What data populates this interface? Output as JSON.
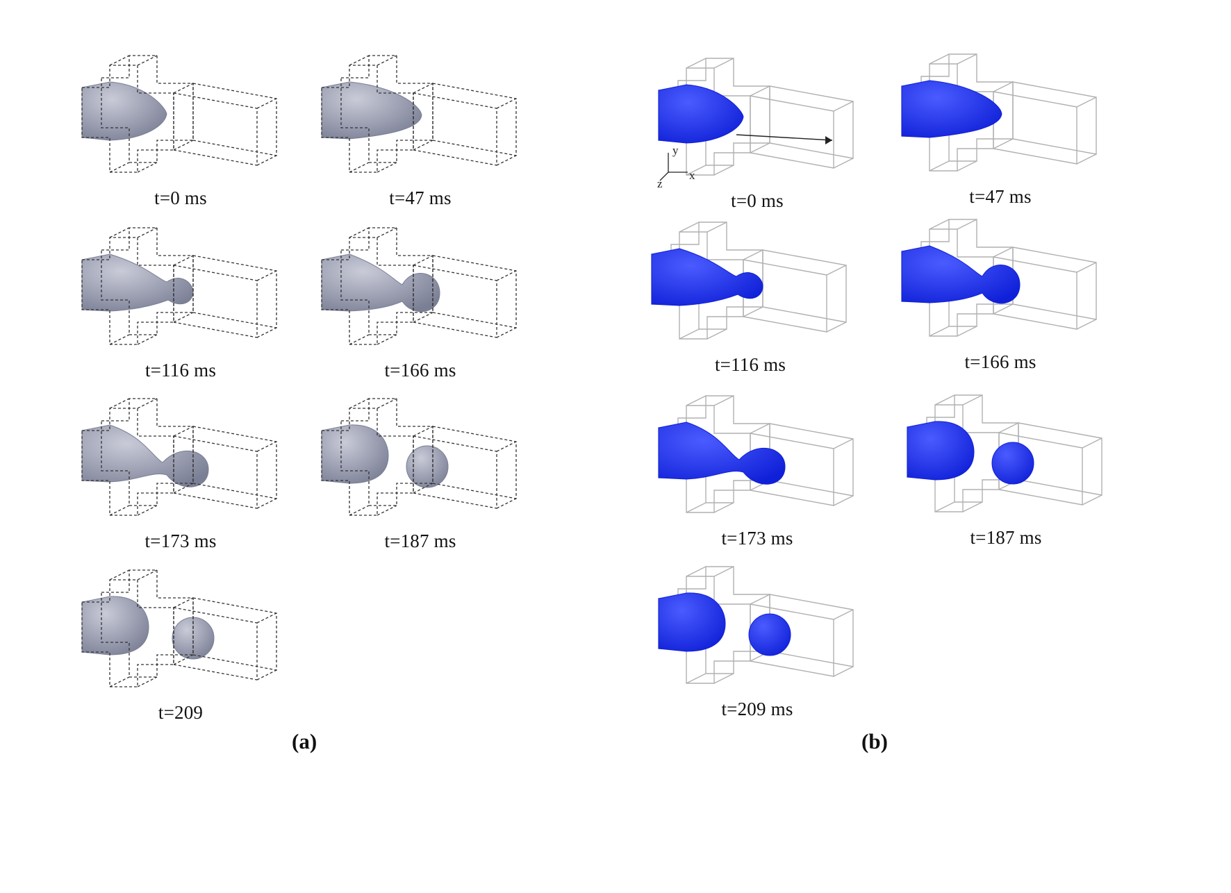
{
  "figure": {
    "panel_a": {
      "label": "(a)",
      "frames": [
        {
          "time": "t=0 ms",
          "stage": 0
        },
        {
          "time": "t=47 ms",
          "stage": 1
        },
        {
          "time": "t=116 ms",
          "stage": 2
        },
        {
          "time": "t=166 ms",
          "stage": 3
        },
        {
          "time": "t=173 ms",
          "stage": 4
        },
        {
          "time": "t=187 ms",
          "stage": 5
        },
        {
          "time": "t=209",
          "stage": 6
        }
      ]
    },
    "panel_b": {
      "label": "(b)",
      "frames": [
        {
          "time": "t=0 ms",
          "stage": 0
        },
        {
          "time": "t=47 ms",
          "stage": 1
        },
        {
          "time": "t=116 ms",
          "stage": 2
        },
        {
          "time": "t=166 ms",
          "stage": 3
        },
        {
          "time": "t=173 ms",
          "stage": 4
        },
        {
          "time": "t=187 ms",
          "stage": 5
        },
        {
          "time": "t=209 ms",
          "stage": 6
        }
      ],
      "axes": {
        "x": "x",
        "y": "y",
        "z": "z"
      }
    }
  },
  "colors": {
    "panel_a_fluid": "#7b7f95",
    "panel_a_highlight": "#c9cbd8",
    "panel_b_fluid": "#1020d8",
    "panel_b_highlight": "#4a5cff",
    "wire_a": "#333333",
    "wire_b": "#b0b0b0"
  }
}
